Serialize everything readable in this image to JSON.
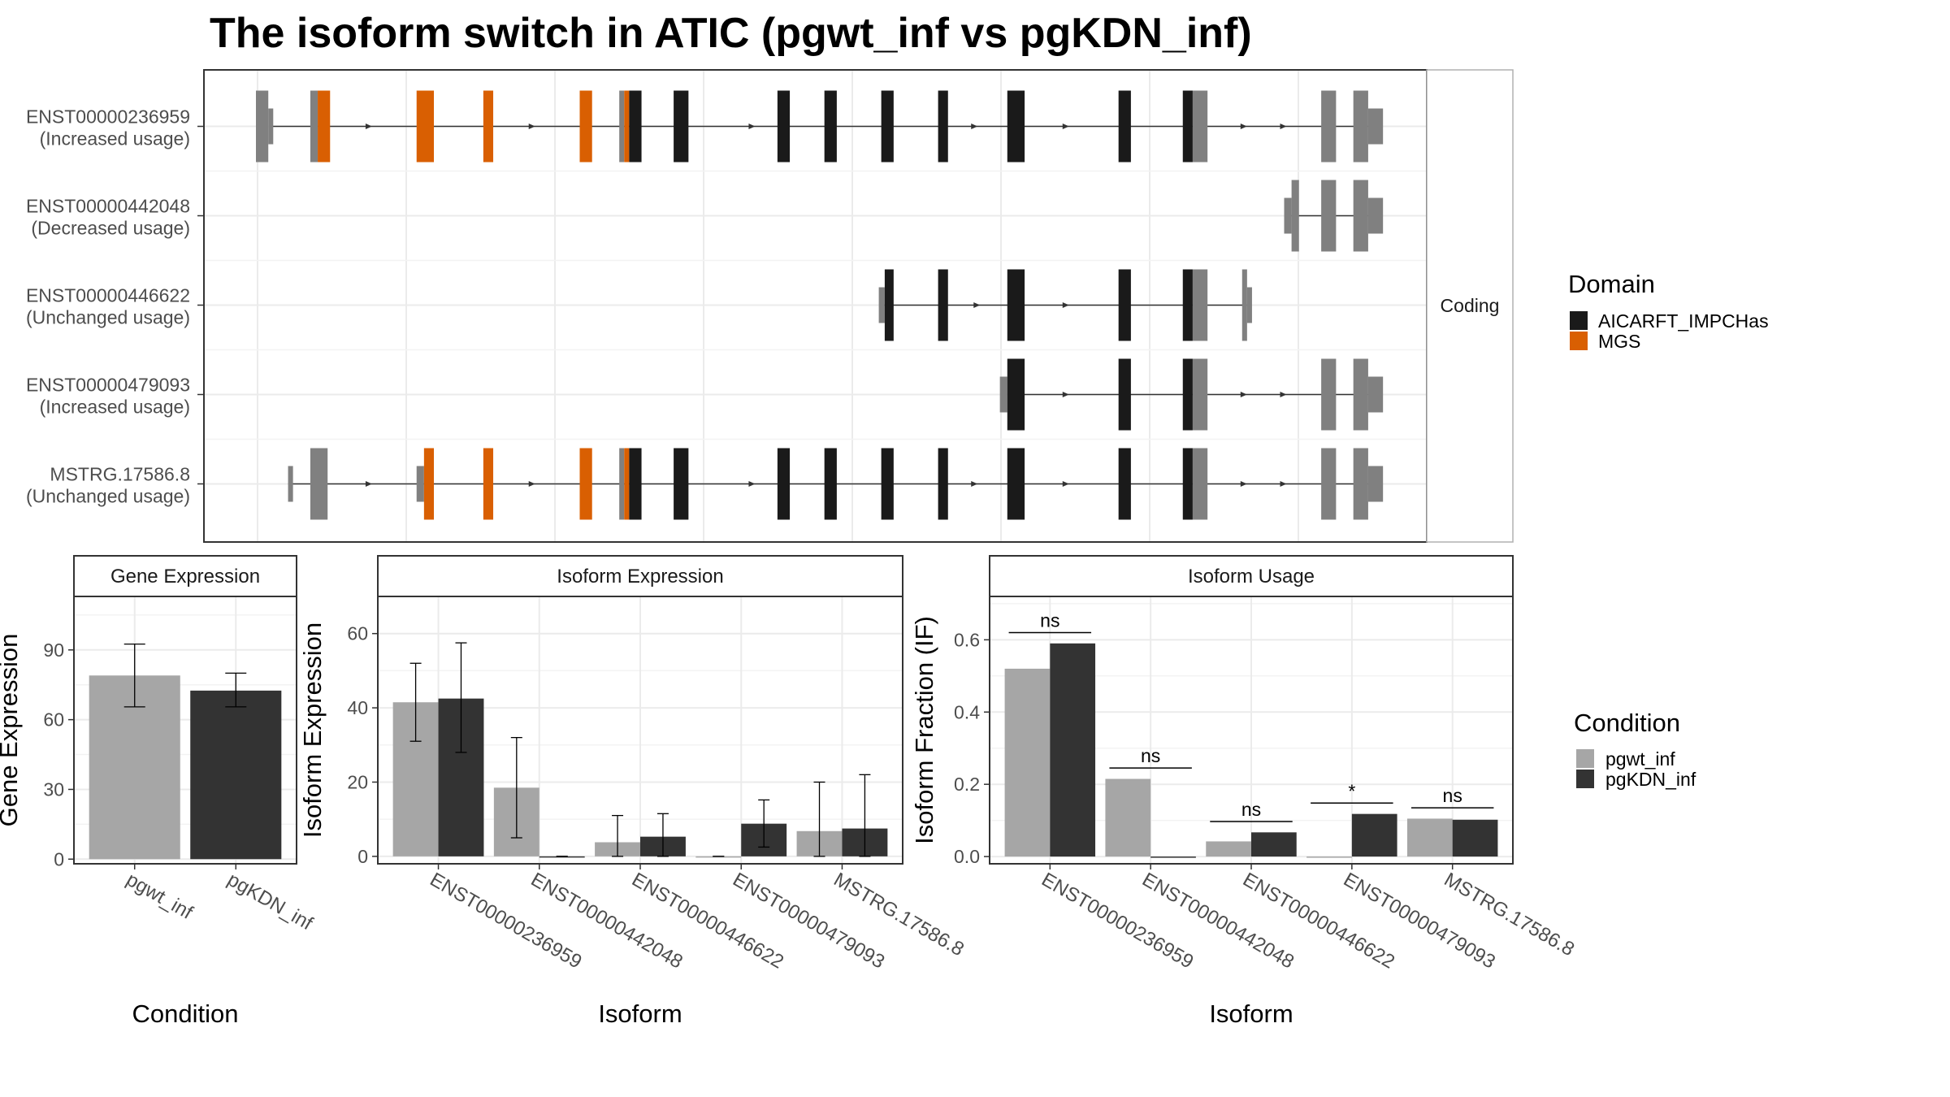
{
  "title": "The isoform switch in ATIC (pgwt_inf vs pgKDN_inf)",
  "colors": {
    "domain_aicarft": "#1a1a1a",
    "domain_mgs": "#d95f02",
    "exon_noncoding": "#808080",
    "cond_wt": "#a6a6a6",
    "cond_kdn": "#333333",
    "grid": "#ebebeb",
    "strip_bg": "#ffffff",
    "panel_border": "#333333"
  },
  "gene_structure": {
    "facet_label": "Coding",
    "genomic_range": [
      0,
      2260
    ],
    "isoforms": [
      {
        "label1": "ENST00000236959",
        "label2": "(Increased usage)",
        "line": [
          30,
          2260
        ],
        "exons": [
          {
            "s": 0,
            "e": 25,
            "k": "u"
          },
          {
            "s": 25,
            "e": 35,
            "k": "c"
          },
          {
            "s": 110,
            "e": 125,
            "k": "u"
          },
          {
            "s": 125,
            "e": 150,
            "k": "m"
          },
          {
            "s": 325,
            "e": 360,
            "k": "m"
          },
          {
            "s": 460,
            "e": 480,
            "k": "m"
          },
          {
            "s": 655,
            "e": 680,
            "k": "m"
          },
          {
            "s": 735,
            "e": 745,
            "k": "u"
          },
          {
            "s": 745,
            "e": 755,
            "k": "m"
          },
          {
            "s": 755,
            "e": 780,
            "k": "a"
          },
          {
            "s": 845,
            "e": 875,
            "k": "a"
          },
          {
            "s": 1055,
            "e": 1080,
            "k": "a"
          },
          {
            "s": 1150,
            "e": 1175,
            "k": "a"
          },
          {
            "s": 1265,
            "e": 1290,
            "k": "a"
          },
          {
            "s": 1380,
            "e": 1400,
            "k": "a"
          },
          {
            "s": 1520,
            "e": 1555,
            "k": "a"
          },
          {
            "s": 1745,
            "e": 1770,
            "k": "a"
          },
          {
            "s": 1875,
            "e": 1895,
            "k": "a"
          },
          {
            "s": 1895,
            "e": 1925,
            "k": "u"
          },
          {
            "s": 2155,
            "e": 2185,
            "k": "u"
          },
          {
            "s": 2220,
            "e": 2250,
            "k": "u"
          },
          {
            "s": 2250,
            "e": 2280,
            "k": "c"
          }
        ],
        "arrows": [
          230,
          560,
          1005,
          1455,
          1640,
          2000,
          2080
        ]
      },
      {
        "label1": "ENST00000442048",
        "label2": "(Decreased usage)",
        "line": [
          2095,
          2270
        ],
        "exons": [
          {
            "s": 2080,
            "e": 2095,
            "k": "c"
          },
          {
            "s": 2095,
            "e": 2110,
            "k": "u"
          },
          {
            "s": 2155,
            "e": 2185,
            "k": "u"
          },
          {
            "s": 2220,
            "e": 2250,
            "k": "u"
          },
          {
            "s": 2250,
            "e": 2280,
            "k": "c"
          }
        ],
        "arrows": []
      },
      {
        "label1": "ENST00000446622",
        "label2": "(Unchanged usage)",
        "line": [
          1270,
          2005
        ],
        "exons": [
          {
            "s": 1260,
            "e": 1272,
            "k": "c"
          },
          {
            "s": 1272,
            "e": 1290,
            "k": "a"
          },
          {
            "s": 1380,
            "e": 1400,
            "k": "a"
          },
          {
            "s": 1520,
            "e": 1555,
            "k": "a"
          },
          {
            "s": 1745,
            "e": 1770,
            "k": "a"
          },
          {
            "s": 1875,
            "e": 1895,
            "k": "a"
          },
          {
            "s": 1895,
            "e": 1925,
            "k": "u"
          },
          {
            "s": 1995,
            "e": 2005,
            "k": "u"
          },
          {
            "s": 2005,
            "e": 2015,
            "k": "c"
          }
        ],
        "arrows": [
          1460,
          1640
        ]
      },
      {
        "label1": "ENST00000479093",
        "label2": "(Increased usage)",
        "line": [
          1525,
          2260
        ],
        "exons": [
          {
            "s": 1505,
            "e": 1520,
            "k": "c"
          },
          {
            "s": 1520,
            "e": 1555,
            "k": "a"
          },
          {
            "s": 1745,
            "e": 1770,
            "k": "a"
          },
          {
            "s": 1875,
            "e": 1895,
            "k": "a"
          },
          {
            "s": 1895,
            "e": 1925,
            "k": "u"
          },
          {
            "s": 2155,
            "e": 2185,
            "k": "u"
          },
          {
            "s": 2220,
            "e": 2250,
            "k": "u"
          },
          {
            "s": 2250,
            "e": 2280,
            "k": "c"
          }
        ],
        "arrows": [
          1640,
          2000,
          2080
        ]
      },
      {
        "label1": "MSTRG.17586.8",
        "label2": "(Unchanged usage)",
        "line": [
          65,
          2260
        ],
        "exons": [
          {
            "s": 65,
            "e": 75,
            "k": "c"
          },
          {
            "s": 110,
            "e": 145,
            "k": "u"
          },
          {
            "s": 325,
            "e": 340,
            "k": "c"
          },
          {
            "s": 340,
            "e": 360,
            "k": "m"
          },
          {
            "s": 460,
            "e": 480,
            "k": "m"
          },
          {
            "s": 655,
            "e": 680,
            "k": "m"
          },
          {
            "s": 735,
            "e": 745,
            "k": "u"
          },
          {
            "s": 745,
            "e": 755,
            "k": "m"
          },
          {
            "s": 755,
            "e": 780,
            "k": "a"
          },
          {
            "s": 845,
            "e": 875,
            "k": "a"
          },
          {
            "s": 1055,
            "e": 1080,
            "k": "a"
          },
          {
            "s": 1150,
            "e": 1175,
            "k": "a"
          },
          {
            "s": 1265,
            "e": 1290,
            "k": "a"
          },
          {
            "s": 1380,
            "e": 1400,
            "k": "a"
          },
          {
            "s": 1520,
            "e": 1555,
            "k": "a"
          },
          {
            "s": 1745,
            "e": 1770,
            "k": "a"
          },
          {
            "s": 1875,
            "e": 1895,
            "k": "a"
          },
          {
            "s": 1895,
            "e": 1925,
            "k": "u"
          },
          {
            "s": 2155,
            "e": 2185,
            "k": "u"
          },
          {
            "s": 2220,
            "e": 2250,
            "k": "u"
          },
          {
            "s": 2250,
            "e": 2280,
            "k": "c"
          }
        ],
        "arrows": [
          230,
          560,
          1005,
          1455,
          1640,
          2000,
          2080
        ]
      }
    ],
    "domain_legend": {
      "title": "Domain",
      "items": [
        {
          "label": "AICARFT_IMPCHas",
          "color": "#1a1a1a"
        },
        {
          "label": "MGS",
          "color": "#d95f02"
        }
      ]
    }
  },
  "chart_data": [
    {
      "type": "bar",
      "strip": "Gene Expression",
      "xlabel": "Condition",
      "ylabel": "Gene Expression",
      "categories": [
        "pgwt_inf",
        "pgKDN_inf"
      ],
      "values": [
        79,
        72.5
      ],
      "error_low": [
        65.5,
        65.5
      ],
      "error_high": [
        92.5,
        80
      ],
      "colors": [
        "#a6a6a6",
        "#333333"
      ],
      "ylim": [
        -2,
        113
      ],
      "yticks": [
        0,
        30,
        60,
        90
      ],
      "ytick_labels": [
        "0",
        "30",
        "60",
        "90"
      ]
    },
    {
      "type": "bar",
      "strip": "Isoform Expression",
      "xlabel": "Isoform",
      "ylabel": "Isoform Expression",
      "categories": [
        "ENST00000236959",
        "ENST00000442048",
        "ENST00000446622",
        "ENST00000479093",
        "MSTRG.17586.8"
      ],
      "series": [
        {
          "name": "pgwt_inf",
          "values": [
            41.5,
            18.5,
            3.8,
            0,
            6.8
          ],
          "error_low": [
            31,
            5,
            0,
            0,
            0
          ],
          "error_high": [
            52,
            32,
            11,
            0,
            20
          ]
        },
        {
          "name": "pgKDN_inf",
          "values": [
            42.5,
            0,
            5.3,
            8.8,
            7.5
          ],
          "error_low": [
            28,
            0,
            0,
            2.5,
            0
          ],
          "error_high": [
            57.5,
            0,
            11.5,
            15.2,
            22
          ]
        }
      ],
      "ylim": [
        -2,
        70
      ],
      "yticks": [
        0,
        20,
        40,
        60
      ],
      "ytick_labels": [
        "0",
        "20",
        "40",
        "60"
      ]
    },
    {
      "type": "bar",
      "strip": "Isoform Usage",
      "xlabel": "Isoform",
      "ylabel": "Isoform Fraction (IF)",
      "categories": [
        "ENST00000236959",
        "ENST00000442048",
        "ENST00000446622",
        "ENST00000479093",
        "MSTRG.17586.8"
      ],
      "series": [
        {
          "name": "pgwt_inf",
          "values": [
            0.52,
            0.215,
            0.042,
            0,
            0.105
          ]
        },
        {
          "name": "pgKDN_inf",
          "values": [
            0.59,
            0,
            0.067,
            0.118,
            0.102
          ]
        }
      ],
      "significance": [
        {
          "label": "ns",
          "y": 0.62
        },
        {
          "label": "ns",
          "y": 0.245
        },
        {
          "label": "ns",
          "y": 0.097
        },
        {
          "label": "*",
          "y": 0.148
        },
        {
          "label": "ns",
          "y": 0.135
        }
      ],
      "ylim": [
        -0.02,
        0.72
      ],
      "yticks": [
        0,
        0.2,
        0.4,
        0.6
      ],
      "ytick_labels": [
        "0.0",
        "0.2",
        "0.4",
        "0.6"
      ]
    }
  ],
  "condition_legend": {
    "title": "Condition",
    "items": [
      {
        "label": "pgwt_inf",
        "color": "#a6a6a6"
      },
      {
        "label": "pgKDN_inf",
        "color": "#333333"
      }
    ]
  }
}
